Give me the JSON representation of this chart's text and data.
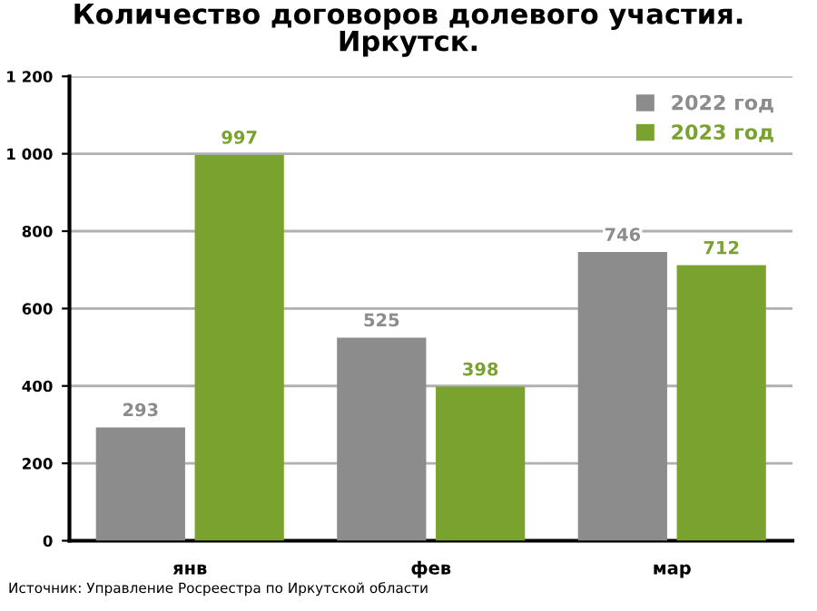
{
  "chart_data": {
    "type": "bar",
    "title": "Количество договоров долевого участия.\nИркутск.",
    "categories": [
      "янв",
      "фев",
      "мар"
    ],
    "series": [
      {
        "name": "2022 год",
        "color": "#8c8c8c",
        "values": [
          293,
          525,
          746
        ]
      },
      {
        "name": "2023 год",
        "color": "#7aa22e",
        "values": [
          997,
          398,
          712
        ]
      }
    ],
    "ylim": [
      0,
      1200
    ],
    "yticks": [
      0,
      200,
      400,
      600,
      800,
      {
        "value": 1000,
        "label": "1 000"
      },
      {
        "value": 1200,
        "label": "1 200"
      }
    ],
    "grid": "y",
    "legend": "top right",
    "data_labels": true,
    "annotations": [
      "Источник: Управление Росреестра по Иркутской области"
    ]
  }
}
